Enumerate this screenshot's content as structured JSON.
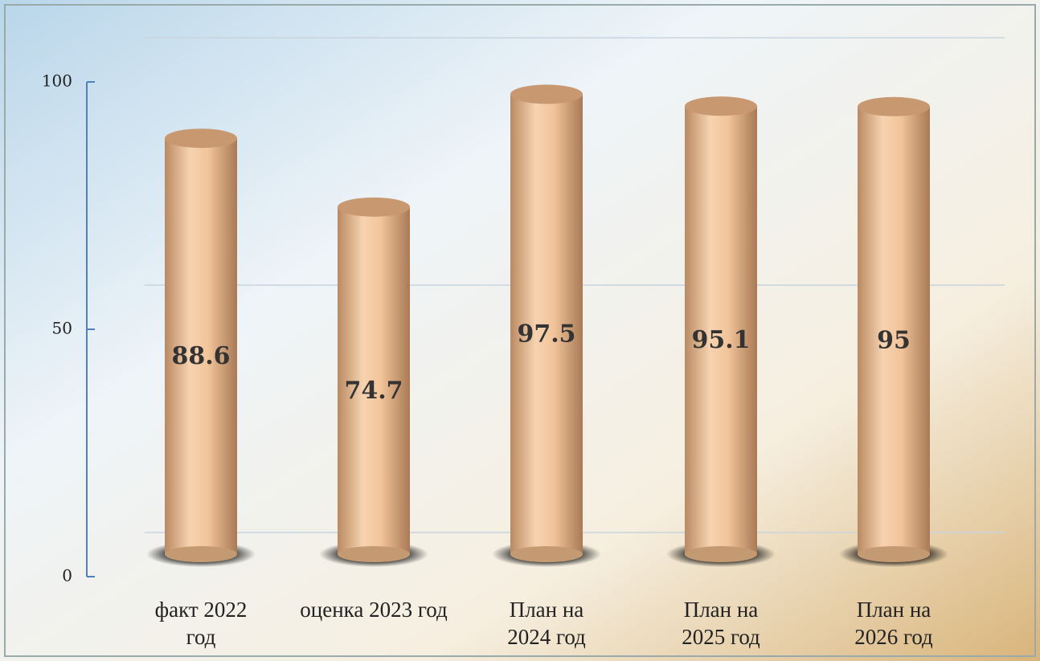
{
  "chart_data": {
    "type": "bar",
    "categories": [
      "факт 2022 год",
      "оценка 2023 год",
      "План на 2024 год",
      "План на 2025 год",
      "План на 2026 год"
    ],
    "values": [
      88.6,
      74.7,
      97.5,
      95.1,
      95
    ],
    "color": "#f2c49a",
    "ylim": [
      0,
      100
    ],
    "yticks": [
      0,
      50,
      100
    ],
    "grid": true
  }
}
